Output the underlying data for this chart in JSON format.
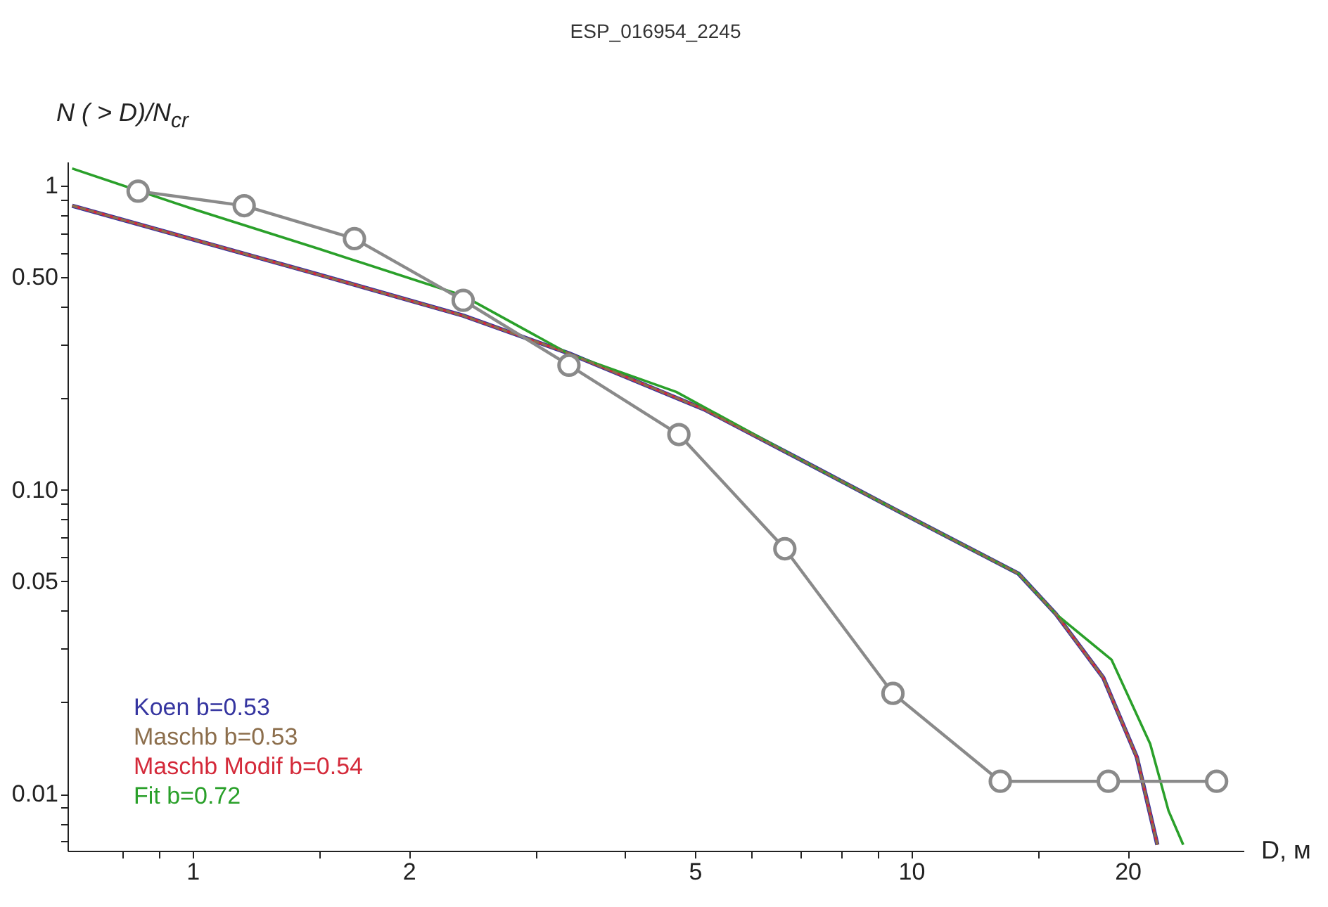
{
  "chart_data": {
    "type": "line",
    "title": "ESP_016954_2245",
    "xlabel": "D, м",
    "ylabel": "N ( > D)/N$_{cr}$",
    "log": "xy",
    "grid": false,
    "legend": "bottom left",
    "xlim": [
      0.67,
      29
    ],
    "ylim": [
      0.0065,
      1.2
    ],
    "xticks": [
      {
        "value": 0.8,
        "label": null
      },
      {
        "value": 0.9,
        "label": null
      },
      1,
      {
        "value": 1.5,
        "label": null
      },
      2,
      {
        "value": 3,
        "label": null
      },
      {
        "value": 4,
        "label": null
      },
      5,
      {
        "value": 6,
        "label": null
      },
      {
        "value": 7,
        "label": null
      },
      {
        "value": 8,
        "label": null
      },
      {
        "value": 9,
        "label": null
      },
      10,
      {
        "value": 15,
        "label": null
      },
      20
    ],
    "yticks": [
      {
        "value": 0.007,
        "label": null
      },
      {
        "value": 0.008,
        "label": null
      },
      {
        "value": 0.009,
        "label": null
      },
      0.01,
      {
        "value": 0.02,
        "label": null
      },
      {
        "value": 0.03,
        "label": null
      },
      {
        "value": 0.04,
        "label": null
      },
      0.05,
      {
        "value": 0.06,
        "label": null
      },
      {
        "value": 0.07,
        "label": null
      },
      {
        "value": 0.08,
        "label": null
      },
      {
        "value": 0.09,
        "label": null
      },
      {
        "value": 0.1,
        "label": "0.10"
      },
      {
        "value": 0.2,
        "label": null
      },
      {
        "value": 0.3,
        "label": null
      },
      {
        "value": 0.4,
        "label": null
      },
      {
        "value": 0.5,
        "label": "0.50"
      },
      {
        "value": 0.6,
        "label": null
      },
      {
        "value": 0.7,
        "label": null
      },
      {
        "value": 0.8,
        "label": null
      },
      {
        "value": 0.9,
        "label": null
      },
      1
    ],
    "series": [
      {
        "color": "#8a8a8a",
        "marker": "circle",
        "line_style": "solid",
        "x": [
          0.84,
          1.18,
          1.68,
          2.38,
          3.34,
          4.75,
          6.67,
          9.43,
          13.3,
          18.8,
          26.6
        ],
        "values": [
          0.96,
          0.86,
          0.67,
          0.42,
          0.257,
          0.152,
          0.064,
          0.0214,
          0.011,
          0.011,
          0.011
        ]
      },
      {
        "name": "Koen b=0.53",
        "color": "#3535a0",
        "marker": "none",
        "line_style": "solid",
        "x": [
          0.68,
          1,
          1.5,
          2.38,
          3.34,
          5.15,
          7,
          9.69,
          14.1,
          15.9,
          18.5,
          20.6,
          22.0
        ],
        "values": [
          0.86,
          0.667,
          0.51,
          0.374,
          0.281,
          0.184,
          0.126,
          0.084,
          0.053,
          0.039,
          0.0241,
          0.0132,
          0.0068
        ]
      },
      {
        "name": "Maschb b=0.53",
        "color": "#8c6e4c",
        "marker": "none",
        "line_style": "dashed",
        "x": [
          0.68,
          1,
          1.5,
          2.38,
          3.34,
          5.15,
          7,
          9.69,
          14.1,
          15.9,
          18.5,
          20.6,
          22.0
        ],
        "values": [
          0.86,
          0.667,
          0.51,
          0.374,
          0.281,
          0.184,
          0.126,
          0.084,
          0.053,
          0.039,
          0.0241,
          0.0132,
          0.0068
        ]
      },
      {
        "name": "Maschb Modif b=0.54",
        "color": "#d42a3a",
        "marker": "none",
        "line_style": "solid",
        "x": [
          0.68,
          1,
          1.5,
          2.38,
          3.34,
          5.15,
          7,
          9.69,
          14.1,
          15.9,
          18.5,
          20.6,
          22.0
        ],
        "values": [
          0.86,
          0.667,
          0.51,
          0.374,
          0.281,
          0.184,
          0.126,
          0.084,
          0.053,
          0.039,
          0.0241,
          0.0132,
          0.0068
        ]
      },
      {
        "name": "Fit b=0.72",
        "color": "#2aa02a",
        "marker": "none",
        "line_style": "solid",
        "x": [
          0.68,
          1,
          1.5,
          2.38,
          3.34,
          4.71,
          7,
          9.69,
          14.1,
          15.9,
          19.0,
          21.5,
          22.8,
          23.9
        ],
        "values": [
          1.14,
          0.84,
          0.62,
          0.435,
          0.28,
          0.21,
          0.126,
          0.084,
          0.053,
          0.039,
          0.0276,
          0.0146,
          0.0088,
          0.0068
        ]
      }
    ]
  }
}
